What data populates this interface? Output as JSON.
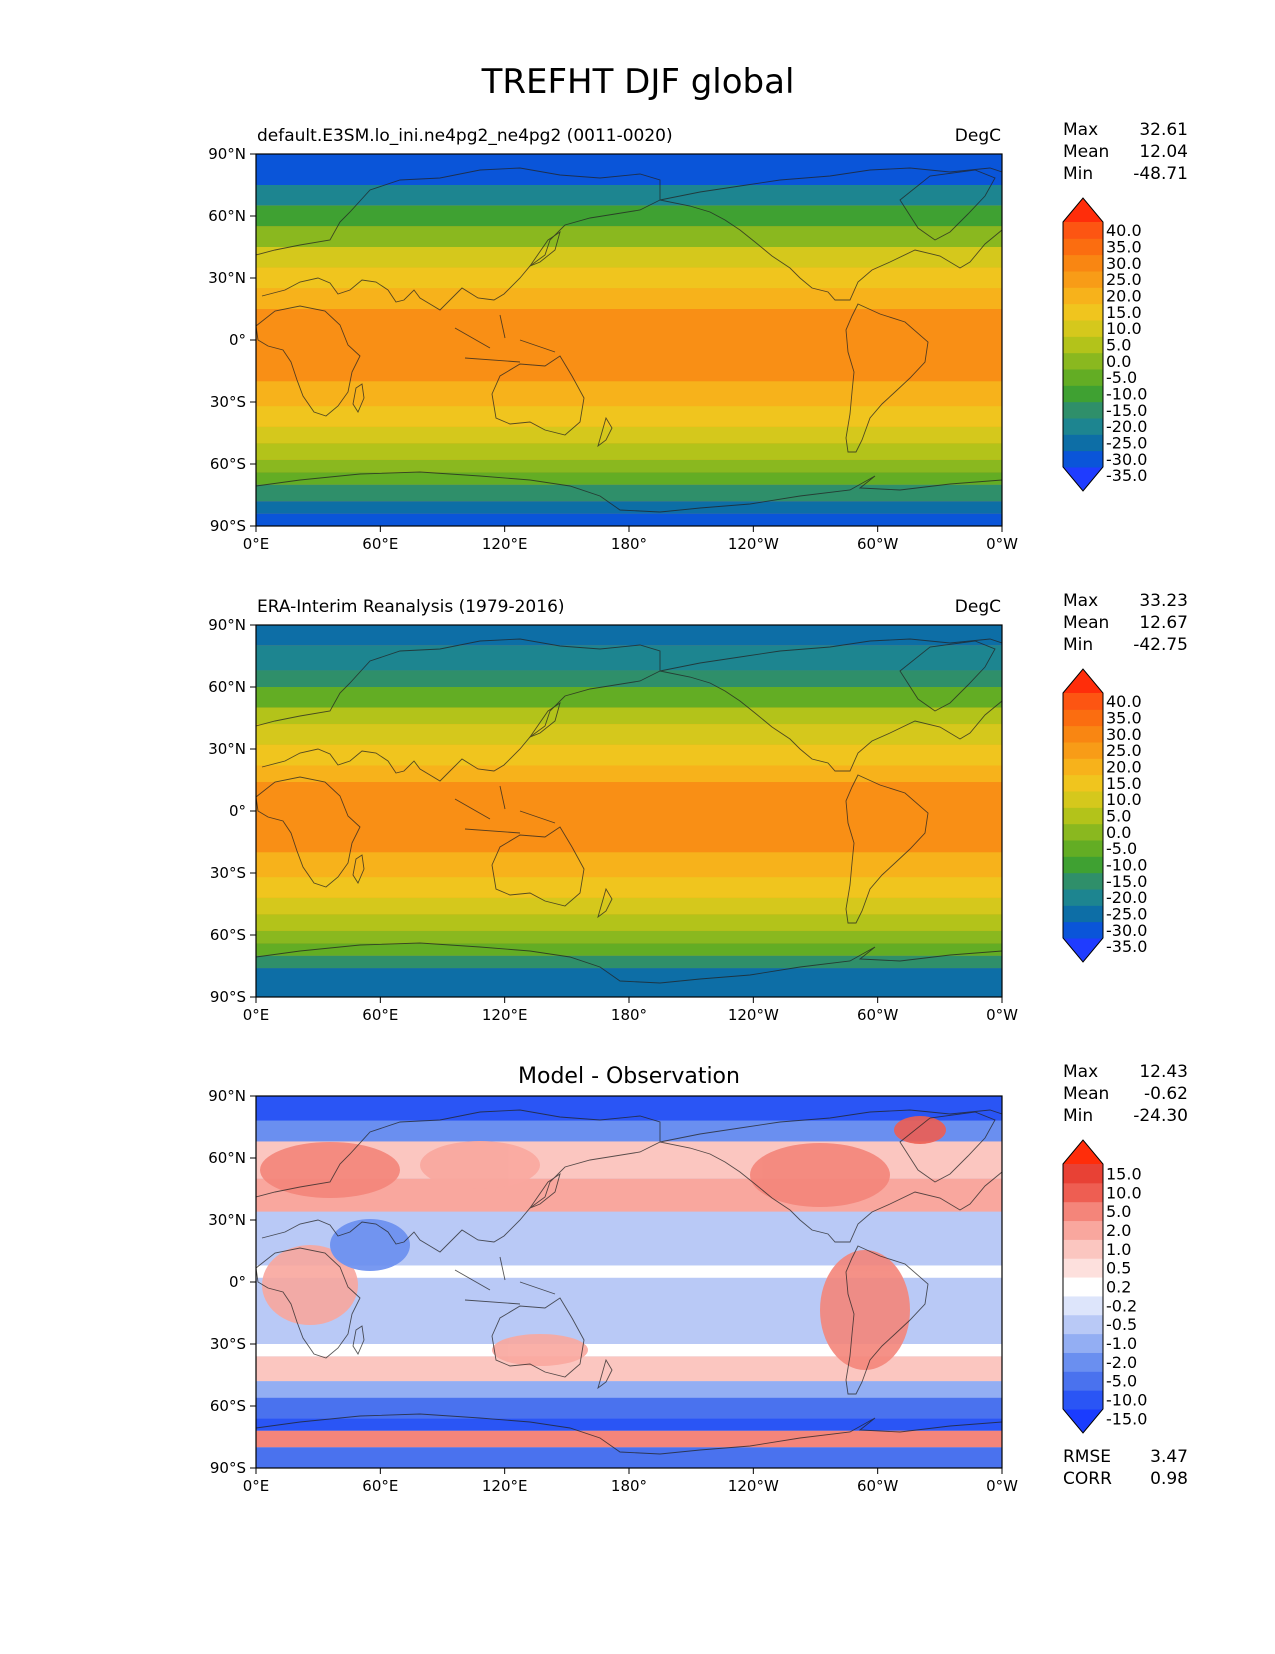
{
  "figure_title": "TREFHT DJF global",
  "lon_ticks": [
    "0°E",
    "60°E",
    "120°E",
    "180°",
    "120°W",
    "60°W",
    "0°W"
  ],
  "lat_ticks": [
    "90°N",
    "60°N",
    "30°N",
    "0°",
    "30°S",
    "60°S",
    "90°S"
  ],
  "panels": [
    {
      "id": "model",
      "title_left": "default.E3SM.lo_ini.ne4pg2_ne4pg2 (0011-0020)",
      "title_center": "",
      "units": "DegC",
      "stats": [
        {
          "label": "Max",
          "value": "32.61"
        },
        {
          "label": "Mean",
          "value": "12.04"
        },
        {
          "label": "Min",
          "value": "-48.71"
        }
      ],
      "colorbar_labels": [
        "40.0",
        "35.0",
        "30.0",
        "25.0",
        "20.0",
        "15.0",
        "10.0",
        "5.0",
        "0.0",
        "-5.0",
        "-10.0",
        "-15.0",
        "-20.0",
        "-25.0",
        "-30.0",
        "-35.0"
      ],
      "colorbar_colors": [
        "#1f3cff",
        "#0a55d9",
        "#0d6ea6",
        "#1d8590",
        "#2f8f6a",
        "#3fa132",
        "#63ad24",
        "#8ab81f",
        "#b3c31a",
        "#d5c81c",
        "#f0c51e",
        "#f7b21b",
        "#f89c17",
        "#f98612",
        "#fb6d10",
        "#fd5512",
        "#ff2d0a"
      ],
      "bg_color": "#f6a418",
      "bands": [
        {
          "lat": 90,
          "color": "#0a55d9"
        },
        {
          "lat": 75,
          "color": "#1d8590"
        },
        {
          "lat": 65,
          "color": "#3fa132"
        },
        {
          "lat": 55,
          "color": "#8ab81f"
        },
        {
          "lat": 45,
          "color": "#d5c81c"
        },
        {
          "lat": 35,
          "color": "#f0c51e"
        },
        {
          "lat": 25,
          "color": "#f7b21b"
        },
        {
          "lat": 15,
          "color": "#f98f15"
        },
        {
          "lat": -20,
          "color": "#f7b21b"
        },
        {
          "lat": -32,
          "color": "#f0c51e"
        },
        {
          "lat": -42,
          "color": "#d5c81c"
        },
        {
          "lat": -50,
          "color": "#b3c31a"
        },
        {
          "lat": -58,
          "color": "#8ab81f"
        },
        {
          "lat": -64,
          "color": "#63ad24"
        },
        {
          "lat": -70,
          "color": "#2f8f6a"
        },
        {
          "lat": -78,
          "color": "#0d6ea6"
        },
        {
          "lat": -84,
          "color": "#0a55d9"
        }
      ],
      "rmse": null,
      "corr": null
    },
    {
      "id": "obs",
      "title_left": "ERA-Interim Reanalysis (1979-2016)",
      "title_center": "",
      "units": "DegC",
      "stats": [
        {
          "label": "Max",
          "value": "33.23"
        },
        {
          "label": "Mean",
          "value": "12.67"
        },
        {
          "label": "Min",
          "value": "-42.75"
        }
      ],
      "colorbar_labels": [
        "40.0",
        "35.0",
        "30.0",
        "25.0",
        "20.0",
        "15.0",
        "10.0",
        "5.0",
        "0.0",
        "-5.0",
        "-10.0",
        "-15.0",
        "-20.0",
        "-25.0",
        "-30.0",
        "-35.0"
      ],
      "colorbar_colors": [
        "#1f3cff",
        "#0a55d9",
        "#0d6ea6",
        "#1d8590",
        "#2f8f6a",
        "#3fa132",
        "#63ad24",
        "#8ab81f",
        "#b3c31a",
        "#d5c81c",
        "#f0c51e",
        "#f7b21b",
        "#f89c17",
        "#f98612",
        "#fb6d10",
        "#fd5512",
        "#ff2d0a"
      ],
      "bg_color": "#f6a418",
      "bands": [
        {
          "lat": 90,
          "color": "#0d6ea6"
        },
        {
          "lat": 80,
          "color": "#1d8590"
        },
        {
          "lat": 68,
          "color": "#2f8f6a"
        },
        {
          "lat": 60,
          "color": "#63ad24"
        },
        {
          "lat": 50,
          "color": "#b3c31a"
        },
        {
          "lat": 42,
          "color": "#d5c81c"
        },
        {
          "lat": 32,
          "color": "#f0c51e"
        },
        {
          "lat": 22,
          "color": "#f7b21b"
        },
        {
          "lat": 14,
          "color": "#f98f15"
        },
        {
          "lat": -20,
          "color": "#f7b21b"
        },
        {
          "lat": -32,
          "color": "#f0c51e"
        },
        {
          "lat": -42,
          "color": "#d5c81c"
        },
        {
          "lat": -50,
          "color": "#b3c31a"
        },
        {
          "lat": -58,
          "color": "#8ab81f"
        },
        {
          "lat": -64,
          "color": "#63ad24"
        },
        {
          "lat": -70,
          "color": "#2f8f6a"
        },
        {
          "lat": -76,
          "color": "#0d6ea6"
        }
      ],
      "rmse": null,
      "corr": null
    },
    {
      "id": "diff",
      "title_left": "",
      "title_center": "Model - Observation",
      "units": "",
      "stats": [
        {
          "label": "Max",
          "value": "12.43"
        },
        {
          "label": "Mean",
          "value": "-0.62"
        },
        {
          "label": "Min",
          "value": "-24.30"
        }
      ],
      "colorbar_labels": [
        "15.0",
        "10.0",
        "5.0",
        "2.0",
        "1.0",
        "0.5",
        "0.2",
        "-0.2",
        "-0.5",
        "-1.0",
        "-2.0",
        "-5.0",
        "-10.0",
        "-15.0"
      ],
      "colorbar_colors": [
        "#1a3cff",
        "#2a55f5",
        "#4a72ee",
        "#6a8ff0",
        "#93aef3",
        "#b9c9f6",
        "#dde5fb",
        "#ffffff",
        "#fde0dd",
        "#fbc6c0",
        "#f9a79e",
        "#f4857a",
        "#ee5e52",
        "#e84135",
        "#ff2d0a"
      ],
      "bg_color": "#b9c9f6",
      "bands": [
        {
          "lat": 90,
          "color": "#2a55f5"
        },
        {
          "lat": 78,
          "color": "#6a8ff0"
        },
        {
          "lat": 68,
          "color": "#fbc6c0"
        },
        {
          "lat": 50,
          "color": "#f9a79e"
        },
        {
          "lat": 34,
          "color": "#b9c9f6"
        },
        {
          "lat": 8,
          "color": "#ffffff"
        },
        {
          "lat": 2,
          "color": "#b9c9f6"
        },
        {
          "lat": -30,
          "color": "#ffffff"
        },
        {
          "lat": -36,
          "color": "#fbc6c0"
        },
        {
          "lat": -48,
          "color": "#93aef3"
        },
        {
          "lat": -56,
          "color": "#4a72ee"
        },
        {
          "lat": -66,
          "color": "#2a55f5"
        },
        {
          "lat": -72,
          "color": "#f4857a"
        },
        {
          "lat": -80,
          "color": "#4a72ee"
        }
      ],
      "rmse": {
        "label": "RMSE",
        "value": "3.47"
      },
      "corr": {
        "label": "CORR",
        "value": "0.98"
      }
    }
  ]
}
